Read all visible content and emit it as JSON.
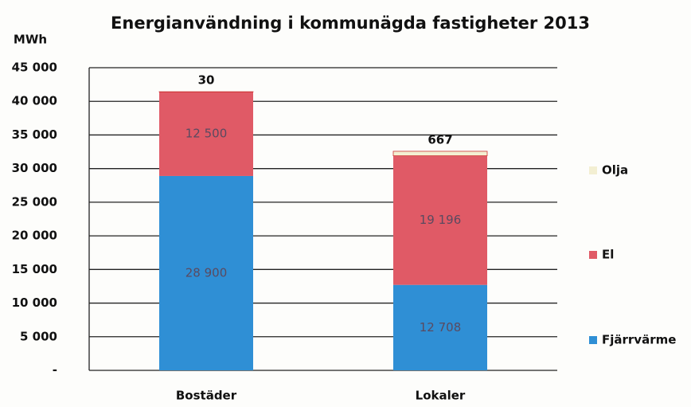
{
  "chart_data": {
    "type": "bar",
    "stacked": true,
    "title": "Energianvändning i kommunägda fastigheter 2013",
    "y_label": "MWh",
    "categories": [
      "Bostäder",
      "Lokaler"
    ],
    "series": [
      {
        "name": "Fjärrvärme",
        "color": "#2f8fd5",
        "values": [
          28900,
          12708
        ],
        "value_labels": [
          "28 900",
          "12 708"
        ]
      },
      {
        "name": "El",
        "color": "#e05a66",
        "values": [
          12500,
          19196
        ],
        "value_labels": [
          "12 500",
          "19 196"
        ]
      },
      {
        "name": "Olja",
        "color": "#f3efd2",
        "values": [
          30,
          667
        ]
      }
    ],
    "ylim": [
      0,
      45000
    ],
    "yticks": [
      {
        "value": 0,
        "label": "-"
      },
      {
        "value": 5000,
        "label": "5 000"
      },
      {
        "value": 10000,
        "label": "10 000"
      },
      {
        "value": 15000,
        "label": "15 000"
      },
      {
        "value": 20000,
        "label": "20 000"
      },
      {
        "value": 25000,
        "label": "25 000"
      },
      {
        "value": 30000,
        "label": "30 000"
      },
      {
        "value": 35000,
        "label": "35 000"
      },
      {
        "value": 40000,
        "label": "40 000"
      },
      {
        "value": 45000,
        "label": "45 000"
      }
    ],
    "grid": true,
    "legend": "right"
  }
}
